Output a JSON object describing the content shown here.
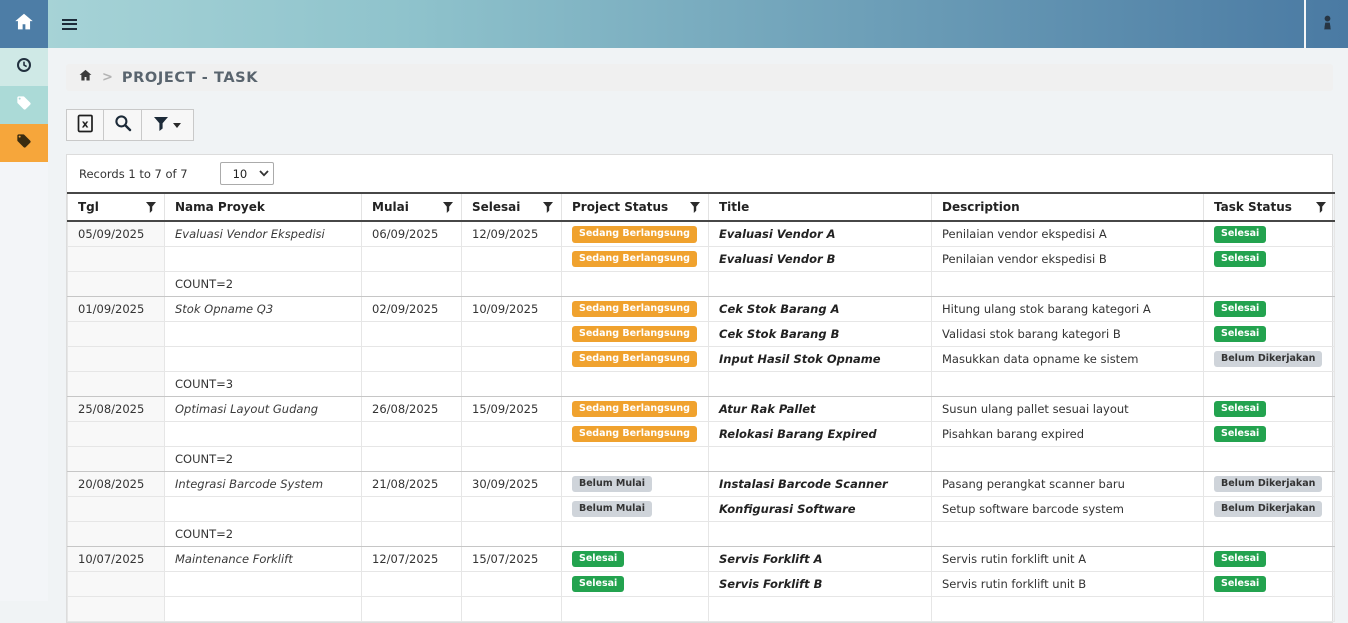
{
  "topbar": {
    "icons": {
      "home": "house",
      "menu": "hamburger",
      "user": "person-silhouette"
    }
  },
  "sidebar": {
    "items": [
      {
        "key": "clock",
        "icon": "clock-icon",
        "active": false
      },
      {
        "key": "tag-light",
        "icon": "tag-icon",
        "active": false
      },
      {
        "key": "tag-dark",
        "icon": "tag-icon",
        "active": true
      }
    ]
  },
  "breadcrumb": {
    "home_icon": "house",
    "separator": ">",
    "title": "PROJECT - TASK"
  },
  "toolbar": {
    "buttons": [
      {
        "key": "export-excel",
        "icon": "excel-file-icon"
      },
      {
        "key": "search",
        "icon": "search-icon"
      },
      {
        "key": "filter",
        "icon": "funnel-icon",
        "has_caret": true
      }
    ]
  },
  "records": {
    "summary": "Records 1 to 7 of 7",
    "page_size": "10"
  },
  "table": {
    "columns": [
      {
        "key": "tgl",
        "label": "Tgl",
        "filterable": true
      },
      {
        "key": "nama-proyek",
        "label": "Nama Proyek",
        "filterable": false
      },
      {
        "key": "mulai",
        "label": "Mulai",
        "filterable": true
      },
      {
        "key": "selesai",
        "label": "Selesai",
        "filterable": true
      },
      {
        "key": "project-status",
        "label": "Project Status",
        "filterable": true
      },
      {
        "key": "title",
        "label": "Title",
        "filterable": false
      },
      {
        "key": "description",
        "label": "Description",
        "filterable": false
      },
      {
        "key": "task-status",
        "label": "Task Status",
        "filterable": true
      }
    ],
    "rows": [
      {
        "type": "data",
        "tgl": "05/09/2025",
        "nama_proyek": "Evaluasi Vendor Ekspedisi",
        "mulai": "06/09/2025",
        "selesai": "12/09/2025",
        "project_status": {
          "label": "Sedang Berlangsung",
          "kind": "warning"
        },
        "title": "Evaluasi Vendor A",
        "description": "Penilaian vendor ekspedisi A",
        "task_status": {
          "label": "Selesai",
          "kind": "success"
        }
      },
      {
        "type": "data",
        "tgl": "",
        "nama_proyek": "",
        "mulai": "",
        "selesai": "",
        "project_status": {
          "label": "Sedang Berlangsung",
          "kind": "warning"
        },
        "title": "Evaluasi Vendor B",
        "description": "Penilaian vendor ekspedisi B",
        "task_status": {
          "label": "Selesai",
          "kind": "success"
        }
      },
      {
        "type": "count",
        "count": "COUNT=2"
      },
      {
        "type": "data",
        "tgl": "01/09/2025",
        "nama_proyek": "Stok Opname Q3",
        "mulai": "02/09/2025",
        "selesai": "10/09/2025",
        "project_status": {
          "label": "Sedang Berlangsung",
          "kind": "warning"
        },
        "title": "Cek Stok Barang A",
        "description": "Hitung ulang stok barang kategori A",
        "task_status": {
          "label": "Selesai",
          "kind": "success"
        }
      },
      {
        "type": "data",
        "tgl": "",
        "nama_proyek": "",
        "mulai": "",
        "selesai": "",
        "project_status": {
          "label": "Sedang Berlangsung",
          "kind": "warning"
        },
        "title": "Cek Stok Barang B",
        "description": "Validasi stok barang kategori B",
        "task_status": {
          "label": "Selesai",
          "kind": "success"
        }
      },
      {
        "type": "data",
        "tgl": "",
        "nama_proyek": "",
        "mulai": "",
        "selesai": "",
        "project_status": {
          "label": "Sedang Berlangsung",
          "kind": "warning"
        },
        "title": "Input Hasil Stok Opname",
        "description": "Masukkan data opname ke sistem",
        "task_status": {
          "label": "Belum Dikerjakan",
          "kind": "default"
        }
      },
      {
        "type": "count",
        "count": "COUNT=3"
      },
      {
        "type": "data",
        "tgl": "25/08/2025",
        "nama_proyek": "Optimasi Layout Gudang",
        "mulai": "26/08/2025",
        "selesai": "15/09/2025",
        "project_status": {
          "label": "Sedang Berlangsung",
          "kind": "warning"
        },
        "title": "Atur Rak Pallet",
        "description": "Susun ulang pallet sesuai layout",
        "task_status": {
          "label": "Selesai",
          "kind": "success"
        }
      },
      {
        "type": "data",
        "tgl": "",
        "nama_proyek": "",
        "mulai": "",
        "selesai": "",
        "project_status": {
          "label": "Sedang Berlangsung",
          "kind": "warning"
        },
        "title": "Relokasi Barang Expired",
        "description": "Pisahkan barang expired",
        "task_status": {
          "label": "Selesai",
          "kind": "success"
        }
      },
      {
        "type": "count",
        "count": "COUNT=2"
      },
      {
        "type": "data",
        "tgl": "20/08/2025",
        "nama_proyek": "Integrasi Barcode System",
        "mulai": "21/08/2025",
        "selesai": "30/09/2025",
        "project_status": {
          "label": "Belum Mulai",
          "kind": "default"
        },
        "title": "Instalasi Barcode Scanner",
        "description": "Pasang perangkat scanner baru",
        "task_status": {
          "label": "Belum Dikerjakan",
          "kind": "default"
        }
      },
      {
        "type": "data",
        "tgl": "",
        "nama_proyek": "",
        "mulai": "",
        "selesai": "",
        "project_status": {
          "label": "Belum Mulai",
          "kind": "default"
        },
        "title": "Konfigurasi Software",
        "description": "Setup software barcode system",
        "task_status": {
          "label": "Belum Dikerjakan",
          "kind": "default"
        }
      },
      {
        "type": "count",
        "count": "COUNT=2"
      },
      {
        "type": "data",
        "tgl": "10/07/2025",
        "nama_proyek": "Maintenance Forklift",
        "mulai": "12/07/2025",
        "selesai": "15/07/2025",
        "project_status": {
          "label": "Selesai",
          "kind": "success"
        },
        "title": "Servis Forklift A",
        "description": "Servis rutin forklift unit A",
        "task_status": {
          "label": "Selesai",
          "kind": "success"
        }
      },
      {
        "type": "data",
        "tgl": "",
        "nama_proyek": "",
        "mulai": "",
        "selesai": "",
        "project_status": {
          "label": "Selesai",
          "kind": "success"
        },
        "title": "Servis Forklift B",
        "description": "Servis rutin forklift unit B",
        "task_status": {
          "label": "Selesai",
          "kind": "success"
        }
      },
      {
        "type": "data",
        "tgl": "",
        "nama_proyek": "",
        "mulai": "",
        "selesai": "",
        "project_status": null,
        "title": "",
        "description": "",
        "task_status": null
      }
    ]
  },
  "colors": {
    "badge_warning": "#f0a22e",
    "badge_success": "#23a34f",
    "badge_neutral": "#cfd4da",
    "sidebar_active": "#f6a63b",
    "topbar_gradient_start": "#a9d5d8",
    "topbar_gradient_end": "#4a7aa3",
    "home_button": "#4d7da6"
  }
}
